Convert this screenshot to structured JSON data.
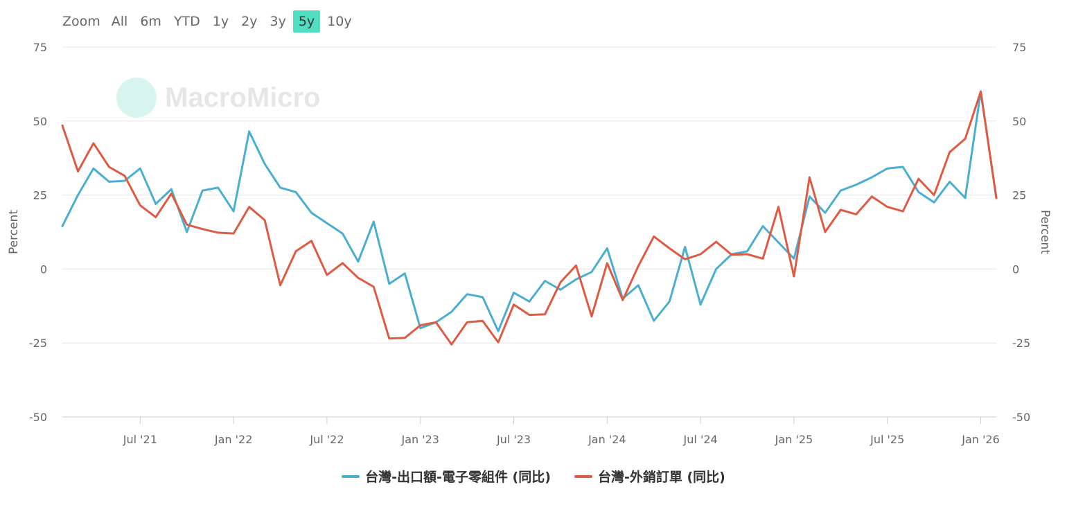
{
  "zoom": {
    "label": "Zoom",
    "buttons": [
      "All",
      "6m",
      "YTD",
      "1y",
      "2y",
      "3y",
      "5y",
      "10y"
    ],
    "active": "5y",
    "active_color": "#4fdec0"
  },
  "watermark": {
    "text": "MacroMicro"
  },
  "chart_data": {
    "type": "line",
    "title": "",
    "ylabel_left": "Percent",
    "ylabel_right": "Percent",
    "ylim": [
      -50,
      75
    ],
    "yticks": [
      -50,
      -25,
      0,
      25,
      50,
      75
    ],
    "xlim": [
      "2021-02",
      "2026-02"
    ],
    "xticks": [
      {
        "date": "2021-07",
        "label": "Jul '21"
      },
      {
        "date": "2022-01",
        "label": "Jan '22"
      },
      {
        "date": "2022-07",
        "label": "Jul '22"
      },
      {
        "date": "2023-01",
        "label": "Jan '23"
      },
      {
        "date": "2023-07",
        "label": "Jul '23"
      },
      {
        "date": "2024-01",
        "label": "Jan '24"
      },
      {
        "date": "2024-07",
        "label": "Jul '24"
      },
      {
        "date": "2025-01",
        "label": "Jan '25"
      },
      {
        "date": "2025-07",
        "label": "Jul '25"
      },
      {
        "date": "2026-01",
        "label": "Jan '26"
      }
    ],
    "grid": true,
    "legend_position": "bottom-center",
    "x": [
      "2021-02",
      "2021-03",
      "2021-04",
      "2021-05",
      "2021-06",
      "2021-07",
      "2021-08",
      "2021-09",
      "2021-10",
      "2021-11",
      "2021-12",
      "2022-01",
      "2022-02",
      "2022-03",
      "2022-04",
      "2022-05",
      "2022-06",
      "2022-07",
      "2022-08",
      "2022-09",
      "2022-10",
      "2022-11",
      "2022-12",
      "2023-01",
      "2023-02",
      "2023-03",
      "2023-04",
      "2023-05",
      "2023-06",
      "2023-07",
      "2023-08",
      "2023-09",
      "2023-10",
      "2023-11",
      "2023-12",
      "2024-01",
      "2024-02",
      "2024-03",
      "2024-04",
      "2024-05",
      "2024-06",
      "2024-07",
      "2024-08",
      "2024-09",
      "2024-10",
      "2024-11",
      "2024-12",
      "2025-01",
      "2025-02",
      "2025-03",
      "2025-04",
      "2025-05",
      "2025-06",
      "2025-07",
      "2025-08",
      "2025-09",
      "2025-10",
      "2025-11",
      "2025-12",
      "2026-01",
      "2026-02"
    ],
    "series": [
      {
        "name": "台灣-出口額-電子零組件 (同比)",
        "color": "#4aaed0",
        "values": [
          14.5,
          25,
          34,
          29.5,
          29.8,
          34,
          22,
          27,
          12.5,
          26.5,
          27.5,
          19.5,
          46.5,
          35.5,
          27.5,
          26,
          19,
          15.5,
          12,
          2.5,
          16,
          -5,
          -1.5,
          -20,
          -18,
          -14.5,
          -8.5,
          -9.5,
          -21,
          -8,
          -11,
          -4,
          -7,
          -3.5,
          -1,
          7,
          -10,
          -5.5,
          -17.5,
          -11,
          7.5,
          -12,
          0,
          5,
          6,
          14.5,
          9,
          3.5,
          24.5,
          19,
          26.5,
          28.5,
          31,
          34,
          34.5,
          26,
          22.5,
          29.5,
          24,
          60,
          24
        ]
      },
      {
        "name": "台灣-外銷訂單 (同比)",
        "color": "#df5a42",
        "values": [
          48.5,
          33,
          42.5,
          34.5,
          31.5,
          21.5,
          17.5,
          25.5,
          15,
          13.5,
          12.3,
          12,
          21,
          16.5,
          -5.5,
          6,
          9.5,
          -2,
          2,
          -3,
          -6,
          -23.5,
          -23.3,
          -19,
          -18,
          -25.5,
          -18,
          -17.5,
          -24.8,
          -12,
          -15.5,
          -15.3,
          -4.5,
          1.2,
          -16,
          2,
          -10.5,
          1,
          11,
          7,
          3.3,
          5,
          9.2,
          4.8,
          5,
          3.5,
          21,
          -2.5,
          31,
          12.5,
          20,
          18.5,
          24.5,
          21,
          19.5,
          30.5,
          25,
          39.5,
          44,
          60,
          24
        ]
      }
    ]
  }
}
